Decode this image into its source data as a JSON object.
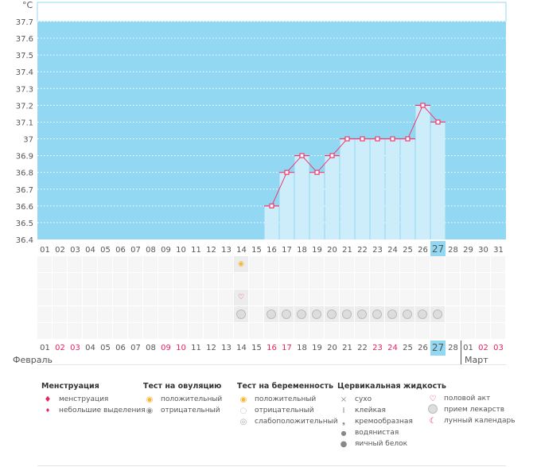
{
  "chart_data": {
    "type": "bar",
    "title": "",
    "ylabel": "°C",
    "ylim": [
      36.4,
      37.8
    ],
    "yticks": [
      "37.7",
      "37.6",
      "37.5",
      "37.4",
      "37.3",
      "37.2",
      "37.1",
      "37",
      "36.9",
      "36.8",
      "36.7",
      "36.6",
      "36.5",
      "36.4"
    ],
    "categories": [
      "01",
      "02",
      "03",
      "04",
      "05",
      "06",
      "07",
      "08",
      "09",
      "10",
      "11",
      "12",
      "13",
      "14",
      "15",
      "16",
      "17",
      "18",
      "19",
      "20",
      "21",
      "22",
      "23",
      "24",
      "25",
      "26",
      "27",
      "28",
      "29",
      "30",
      "31"
    ],
    "values": [
      null,
      null,
      null,
      null,
      null,
      null,
      null,
      null,
      null,
      null,
      null,
      null,
      null,
      null,
      null,
      36.6,
      36.8,
      36.9,
      36.8,
      36.9,
      37.0,
      37.0,
      37.0,
      37.0,
      37.0,
      37.2,
      37.1,
      null,
      null,
      null,
      null
    ],
    "today": "27",
    "colors": {
      "bg": "#93d8f2",
      "bar": "#cdedfb",
      "line": "#f0386e"
    }
  },
  "grid": {
    "ovulation_positive_day": 14,
    "intercourse_day": 14,
    "medication_days": [
      14,
      16,
      17,
      18,
      19,
      20,
      21,
      22,
      23,
      24,
      25,
      26,
      27
    ]
  },
  "bottom_dates": [
    {
      "d": "01"
    },
    {
      "d": "02",
      "red": true
    },
    {
      "d": "03",
      "red": true
    },
    {
      "d": "04"
    },
    {
      "d": "05"
    },
    {
      "d": "06"
    },
    {
      "d": "07"
    },
    {
      "d": "08"
    },
    {
      "d": "09",
      "red": true
    },
    {
      "d": "10",
      "red": true
    },
    {
      "d": "11"
    },
    {
      "d": "12"
    },
    {
      "d": "13"
    },
    {
      "d": "14"
    },
    {
      "d": "15"
    },
    {
      "d": "16",
      "red": true
    },
    {
      "d": "17",
      "red": true
    },
    {
      "d": "18"
    },
    {
      "d": "19"
    },
    {
      "d": "20"
    },
    {
      "d": "21"
    },
    {
      "d": "22"
    },
    {
      "d": "23",
      "red": true
    },
    {
      "d": "24",
      "red": true
    },
    {
      "d": "25"
    },
    {
      "d": "26"
    },
    {
      "d": "27",
      "today": true
    },
    {
      "d": "28"
    },
    {
      "d": "01"
    },
    {
      "d": "02",
      "red": true
    },
    {
      "d": "03",
      "red": true
    }
  ],
  "months": {
    "feb": "Февраль",
    "mar": "Март"
  },
  "legend": {
    "menstr": {
      "title": "Менструация",
      "items": [
        "менструация",
        "небольшие выделения"
      ]
    },
    "ovul": {
      "title": "Тест на овуляцию",
      "items": [
        "положительный",
        "отрицательный"
      ]
    },
    "preg": {
      "title": "Тест на беременность",
      "items": [
        "положительный",
        "отрицательный",
        "слабоположительный"
      ]
    },
    "cerv": {
      "title": "Цервикальная жидкость",
      "items": [
        "сухо",
        "клейкая",
        "кремообразная",
        "водянистая",
        "яичный белок"
      ]
    },
    "other": {
      "items": [
        "половой акт",
        "прием лекарств",
        "лунный календарь"
      ]
    }
  }
}
